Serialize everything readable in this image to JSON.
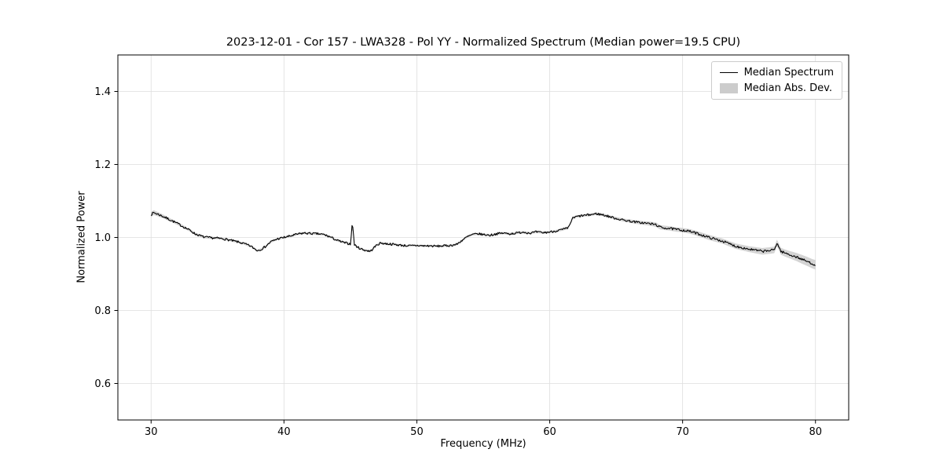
{
  "chart_data": {
    "type": "line",
    "title": "2023-12-01 - Cor 157 - LWA328 - Pol YY - Normalized Spectrum (Median power=19.5 CPU)",
    "xlabel": "Frequency (MHz)",
    "ylabel": "Normalized Power",
    "xlim": [
      27.5,
      82.5
    ],
    "ylim": [
      0.5,
      1.5
    ],
    "xticks": [
      30,
      40,
      50,
      60,
      70,
      80
    ],
    "yticks": [
      0.6,
      0.8,
      1.0,
      1.2,
      1.4
    ],
    "grid": true,
    "grid_color": "#dedede",
    "noise_amplitude": 0.0032,
    "legend": {
      "position": "upper right",
      "entries": [
        {
          "label": "Median Spectrum",
          "type": "line",
          "color": "#000000"
        },
        {
          "label": "Median Abs. Dev.",
          "type": "patch",
          "color": "#cccccc"
        }
      ]
    },
    "series": [
      {
        "name": "Median Spectrum",
        "type": "line",
        "color": "#000000",
        "x": [
          30.0,
          30.2,
          30.5,
          31.0,
          31.5,
          32.0,
          32.5,
          33.0,
          33.3,
          33.6,
          34.0,
          34.5,
          35.0,
          35.5,
          36.0,
          36.5,
          37.0,
          37.5,
          38.0,
          38.3,
          38.6,
          39.0,
          39.5,
          40.0,
          40.5,
          41.0,
          41.5,
          42.0,
          42.5,
          43.0,
          43.5,
          44.0,
          44.5,
          45.0,
          45.15,
          45.3,
          45.6,
          46.0,
          46.5,
          47.0,
          47.3,
          47.6,
          48.0,
          48.5,
          49.0,
          49.5,
          50.0,
          50.5,
          51.0,
          51.5,
          52.0,
          52.5,
          53.0,
          53.4,
          53.8,
          54.2,
          54.6,
          55.0,
          55.5,
          56.0,
          56.5,
          57.0,
          57.5,
          58.0,
          58.5,
          59.0,
          59.5,
          60.0,
          60.5,
          61.0,
          61.4,
          61.7,
          62.0,
          62.5,
          63.0,
          63.5,
          64.0,
          64.5,
          65.0,
          65.5,
          66.0,
          66.5,
          67.0,
          67.5,
          68.0,
          68.3,
          68.7,
          69.0,
          69.5,
          70.0,
          70.5,
          71.0,
          71.5,
          72.0,
          72.5,
          73.0,
          73.5,
          74.0,
          74.5,
          75.0,
          75.5,
          76.0,
          76.5,
          76.9,
          77.1,
          77.4,
          77.8,
          78.2,
          78.6,
          79.0,
          79.4,
          79.7,
          80.0
        ],
        "y": [
          1.063,
          1.068,
          1.064,
          1.056,
          1.047,
          1.038,
          1.028,
          1.018,
          1.01,
          1.006,
          1.001,
          0.999,
          0.998,
          0.996,
          0.992,
          0.988,
          0.983,
          0.976,
          0.964,
          0.968,
          0.975,
          0.988,
          0.996,
          1.0,
          1.004,
          1.009,
          1.012,
          1.011,
          1.01,
          1.008,
          1.001,
          0.992,
          0.986,
          0.982,
          1.042,
          0.98,
          0.972,
          0.966,
          0.962,
          0.98,
          0.985,
          0.983,
          0.982,
          0.98,
          0.978,
          0.977,
          0.978,
          0.977,
          0.977,
          0.976,
          0.977,
          0.978,
          0.981,
          0.992,
          1.002,
          1.008,
          1.01,
          1.008,
          1.006,
          1.01,
          1.012,
          1.01,
          1.012,
          1.015,
          1.012,
          1.015,
          1.013,
          1.015,
          1.018,
          1.022,
          1.026,
          1.052,
          1.057,
          1.06,
          1.062,
          1.065,
          1.062,
          1.057,
          1.052,
          1.048,
          1.045,
          1.042,
          1.04,
          1.038,
          1.035,
          1.028,
          1.026,
          1.025,
          1.022,
          1.02,
          1.017,
          1.012,
          1.006,
          1.0,
          0.995,
          0.99,
          0.983,
          0.976,
          0.972,
          0.968,
          0.965,
          0.962,
          0.964,
          0.966,
          0.985,
          0.962,
          0.956,
          0.951,
          0.946,
          0.94,
          0.934,
          0.929,
          0.925
        ]
      },
      {
        "name": "Median Abs. Dev.",
        "type": "band",
        "color": "#cccccc",
        "x": [
          30,
          31,
          32,
          35,
          40,
          45,
          50,
          55,
          60,
          63,
          65,
          67,
          68,
          69,
          70,
          71,
          72,
          73,
          74,
          75,
          76,
          77,
          78,
          79,
          80
        ],
        "halfwidth": [
          0.007,
          0.005,
          0.004,
          0.003,
          0.003,
          0.003,
          0.0025,
          0.003,
          0.003,
          0.0035,
          0.004,
          0.005,
          0.006,
          0.006,
          0.006,
          0.0065,
          0.007,
          0.007,
          0.0075,
          0.008,
          0.009,
          0.009,
          0.01,
          0.012,
          0.013
        ]
      }
    ]
  }
}
